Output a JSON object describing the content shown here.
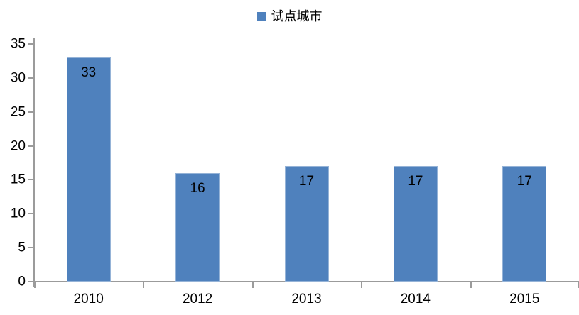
{
  "legend": {
    "label": "试点城市",
    "marker_color": "#4f81bd"
  },
  "chart_data": {
    "type": "bar",
    "title": "",
    "series": [
      {
        "name": "试点城市",
        "values": [
          33,
          16,
          17,
          17,
          17
        ]
      }
    ],
    "categories": [
      "2010",
      "2012",
      "2013",
      "2014",
      "2015"
    ],
    "data_labels": [
      "33",
      "16",
      "17",
      "17",
      "17"
    ],
    "ylim": [
      0,
      35
    ],
    "yticks": [
      0,
      5,
      10,
      15,
      20,
      25,
      30,
      35
    ],
    "xlabel": "",
    "ylabel": "",
    "grid": false,
    "legend_position": "top-center",
    "bar_color": "#4f81bd",
    "axis_color": "#9b9b9b",
    "label_color": "#000000",
    "background_color": "#ffffff"
  }
}
